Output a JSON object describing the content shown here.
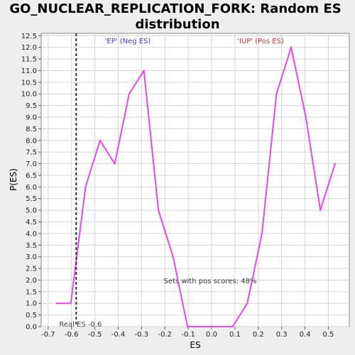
{
  "chart_data": {
    "type": "line",
    "title_line1": "GO_NUCLEAR_REPLICATION_FORK: Random ES",
    "title_line2": "distribution",
    "xlabel": "ES",
    "ylabel": "P(ES)",
    "xlim": [
      -0.73,
      0.59
    ],
    "ylim": [
      0,
      12.6
    ],
    "x_ticks": [
      "-0.7",
      "-0.6",
      "-0.5",
      "-0.4",
      "-0.3",
      "-0.2",
      "-0.1",
      "0.0",
      "0.1",
      "0.2",
      "0.3",
      "0.4",
      "0.5"
    ],
    "x_tick_values": [
      -0.7,
      -0.6,
      -0.5,
      -0.4,
      -0.3,
      -0.2,
      -0.1,
      0.0,
      0.1,
      0.2,
      0.3,
      0.4,
      0.5
    ],
    "y_ticks": [
      "0.0",
      "0.5",
      "1.0",
      "1.5",
      "2.0",
      "2.5",
      "3.0",
      "3.5",
      "4.0",
      "4.5",
      "5.0",
      "5.5",
      "6.0",
      "6.5",
      "7.0",
      "7.5",
      "8.0",
      "8.5",
      "9.0",
      "9.5",
      "10.0",
      "10.5",
      "11.0",
      "11.5",
      "12.0",
      "12.5"
    ],
    "y_tick_values": [
      0,
      0.5,
      1,
      1.5,
      2,
      2.5,
      3,
      3.5,
      4,
      4.5,
      5,
      5.5,
      6,
      6.5,
      7,
      7.5,
      8,
      8.5,
      9,
      9.5,
      10,
      10.5,
      11,
      11.5,
      12,
      12.5
    ],
    "grid": true,
    "series": [
      {
        "color": "#ee44ee",
        "x": [
          -0.665,
          -0.603,
          -0.54,
          -0.478,
          -0.415,
          -0.353,
          -0.29,
          -0.228,
          -0.165,
          -0.103,
          -0.04,
          0.022,
          0.09,
          0.153,
          0.216,
          0.278,
          0.341,
          0.404,
          0.466,
          0.529
        ],
        "y": [
          1.0,
          1.0,
          6.0,
          8.0,
          7.0,
          10.0,
          11.0,
          5.0,
          3.0,
          0.0,
          0.0,
          0.0,
          0.0,
          1.0,
          4.0,
          10.0,
          12.0,
          9.0,
          5.0,
          7.0
        ]
      }
    ],
    "real_es": {
      "x": -0.58,
      "label": "Real ES -0.6"
    },
    "annotations": {
      "ep_label": "'EP' (Neg ES)",
      "iup_label": "'IUP' (Pos ES)",
      "pos_scores": "Sets with pos scores: 48%"
    },
    "colors": {
      "ep": "#4040cc",
      "iup": "#cc3333",
      "line": "#ee44ee",
      "grid": "#d4d4d4"
    }
  }
}
